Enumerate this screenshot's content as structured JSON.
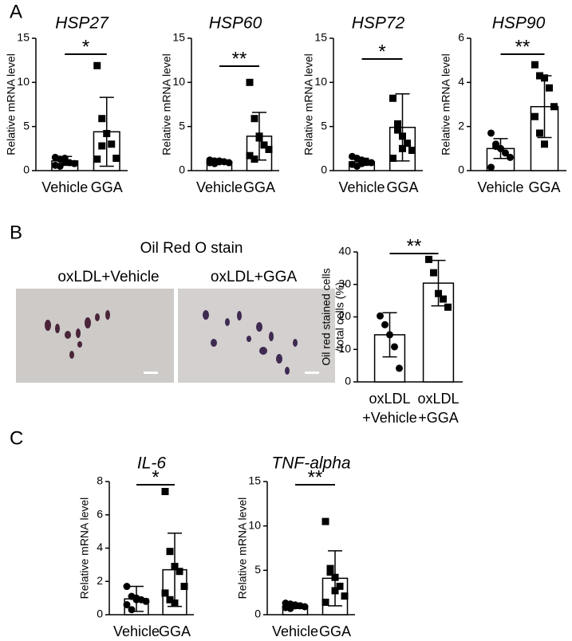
{
  "panel_labels": [
    "A",
    "B",
    "C"
  ],
  "image_panel": {
    "title": "Oil Red O stain",
    "labels": [
      "oxLDL+Vehicle",
      "oxLDL+GGA"
    ]
  },
  "chart_data": [
    {
      "type": "bar",
      "title": "HSP27",
      "ylabel": [
        "Relative mRNA level"
      ],
      "categories": [
        [
          "Vehicle"
        ],
        [
          "GGA"
        ]
      ],
      "values": [
        1.1,
        4.4
      ],
      "errors": [
        0.5,
        3.9
      ],
      "points": [
        [
          1.5,
          1.3,
          1.0,
          0.9,
          0.8,
          0.6,
          0.5,
          1.4
        ],
        [
          11.9,
          5.9,
          4.2,
          3.0,
          1.4,
          1.3,
          2.8
        ]
      ],
      "significance": "*",
      "ylim": [
        0,
        15
      ],
      "yticks": [
        0,
        5,
        10,
        15
      ],
      "color": "#ffffff"
    },
    {
      "type": "bar",
      "title": "HSP60",
      "ylabel": [
        "Relative mRNA level"
      ],
      "categories": [
        [
          "Vehicle"
        ],
        [
          "GGA"
        ]
      ],
      "values": [
        1.0,
        3.9
      ],
      "errors": [
        0.2,
        2.7
      ],
      "points": [
        [
          1.2,
          1.1,
          1.0,
          1.0,
          0.9,
          0.9,
          0.8,
          1.1
        ],
        [
          10.0,
          5.9,
          3.9,
          2.9,
          2.4,
          1.7,
          1.3,
          3.7
        ]
      ],
      "significance": "**",
      "ylim": [
        0,
        15
      ],
      "yticks": [
        0,
        5,
        10,
        15
      ],
      "color": "#ffffff"
    },
    {
      "type": "bar",
      "title": "HSP72",
      "ylabel": [
        "Relative mRNA level"
      ],
      "categories": [
        [
          "Vehicle"
        ],
        [
          "GGA"
        ]
      ],
      "values": [
        1.0,
        4.9
      ],
      "errors": [
        0.4,
        3.8
      ],
      "points": [
        [
          1.6,
          1.4,
          1.2,
          1.0,
          0.9,
          0.7,
          0.5,
          0.8
        ],
        [
          8.2,
          4.6,
          3.9,
          3.1,
          2.3,
          1.4,
          5.3,
          2.5
        ]
      ],
      "significance": "*",
      "ylim": [
        0,
        15
      ],
      "yticks": [
        0,
        5,
        10,
        15
      ],
      "color": "#ffffff"
    },
    {
      "type": "bar",
      "title": "HSP90",
      "ylabel": [
        "Relative mRNA level"
      ],
      "categories": [
        [
          "Vehicle"
        ],
        [
          "GGA"
        ]
      ],
      "values": [
        1.0,
        2.9
      ],
      "errors": [
        0.45,
        1.4
      ],
      "points": [
        [
          1.7,
          1.2,
          1.0,
          0.8,
          0.6,
          0.15,
          1.1,
          1.0
        ],
        [
          4.8,
          4.3,
          4.2,
          3.75,
          2.9,
          2.45,
          1.7,
          1.2
        ]
      ],
      "significance": "**",
      "ylim": [
        0,
        6
      ],
      "yticks": [
        0,
        2,
        4,
        6
      ],
      "color": "#ffffff"
    },
    {
      "type": "bar",
      "title": null,
      "ylabel": [
        "Oil red stained cells",
        "/total cells (%)"
      ],
      "categories": [
        [
          "oxLDL",
          "+Vehicle"
        ],
        [
          "oxLDL",
          "+GGA"
        ]
      ],
      "values": [
        14.5,
        30.4
      ],
      "errors": [
        6.8,
        7.0
      ],
      "points": [
        [
          20.3,
          17.6,
          14.5,
          10.8,
          4.2
        ],
        [
          37.7,
          33.6,
          27.2,
          25.5,
          23.0
        ]
      ],
      "significance": "**",
      "ylim": [
        0,
        40
      ],
      "yticks": [
        0,
        10,
        20,
        30,
        40
      ],
      "color": "#ffffff"
    },
    {
      "type": "bar",
      "title": "IL-6",
      "ylabel": [
        "Relative mRNA level"
      ],
      "categories": [
        [
          "Vehicle"
        ],
        [
          "GGA"
        ]
      ],
      "values": [
        0.95,
        2.7
      ],
      "errors": [
        0.75,
        2.2
      ],
      "points": [
        [
          1.7,
          1.1,
          1.0,
          0.9,
          0.8,
          0.6,
          0.3,
          0.9
        ],
        [
          7.4,
          3.8,
          2.9,
          2.6,
          1.7,
          1.3,
          0.9,
          0.7
        ]
      ],
      "significance": "*",
      "ylim": [
        0,
        8
      ],
      "yticks": [
        0,
        2,
        4,
        6,
        8
      ],
      "color": "#ffffff"
    },
    {
      "type": "bar",
      "title": "TNF-alpha",
      "ylabel": [
        "Relative mRNA level"
      ],
      "categories": [
        [
          "Vehicle"
        ],
        [
          "GGA"
        ]
      ],
      "values": [
        1.0,
        4.1
      ],
      "errors": [
        0.3,
        3.1
      ],
      "points": [
        [
          1.3,
          1.2,
          1.1,
          1.0,
          0.9,
          0.8,
          0.7,
          1.0
        ],
        [
          10.5,
          4.8,
          4.2,
          3.2,
          2.1,
          1.4,
          5.2,
          2.7
        ]
      ],
      "significance": "**",
      "ylim": [
        0,
        15
      ],
      "yticks": [
        0,
        5,
        10,
        15
      ],
      "color": "#ffffff"
    }
  ]
}
